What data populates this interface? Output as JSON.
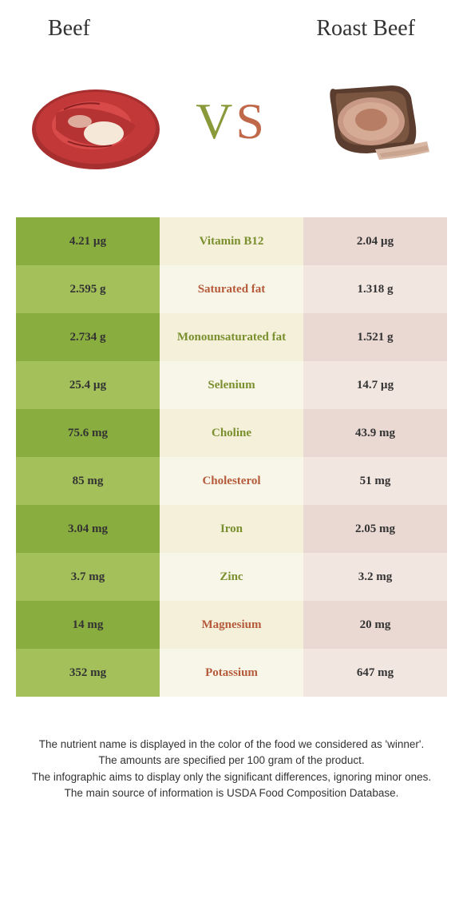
{
  "header": {
    "left": "Beef",
    "right": "Roast Beef"
  },
  "vs": {
    "v": "V",
    "s": "S"
  },
  "colors": {
    "left_dark": "#8aad3f",
    "left_light": "#a4c05a",
    "mid_dark": "#f4f0da",
    "mid_light": "#f8f6e8",
    "right_dark": "#ead8d2",
    "right_light": "#f2e6e1",
    "winner_left": "#7a8f2e",
    "winner_right": "#b55a3a"
  },
  "rows": [
    {
      "left": "4.21 µg",
      "label": "Vitamin B12",
      "right": "2.04 µg",
      "winner": "left"
    },
    {
      "left": "2.595 g",
      "label": "Saturated fat",
      "right": "1.318 g",
      "winner": "right"
    },
    {
      "left": "2.734 g",
      "label": "Monounsaturated fat",
      "right": "1.521 g",
      "winner": "left"
    },
    {
      "left": "25.4 µg",
      "label": "Selenium",
      "right": "14.7 µg",
      "winner": "left"
    },
    {
      "left": "75.6 mg",
      "label": "Choline",
      "right": "43.9 mg",
      "winner": "left"
    },
    {
      "left": "85 mg",
      "label": "Cholesterol",
      "right": "51 mg",
      "winner": "right"
    },
    {
      "left": "3.04 mg",
      "label": "Iron",
      "right": "2.05 mg",
      "winner": "left"
    },
    {
      "left": "3.7 mg",
      "label": "Zinc",
      "right": "3.2 mg",
      "winner": "left"
    },
    {
      "left": "14 mg",
      "label": "Magnesium",
      "right": "20 mg",
      "winner": "right"
    },
    {
      "left": "352 mg",
      "label": "Potassium",
      "right": "647 mg",
      "winner": "right"
    }
  ],
  "footnotes": [
    "The nutrient name is displayed in the color of the food we considered as 'winner'.",
    "The amounts are specified per 100 gram of the product.",
    "The infographic aims to display only the significant differences, ignoring minor ones.",
    "The main source of information is USDA Food Composition Database."
  ]
}
